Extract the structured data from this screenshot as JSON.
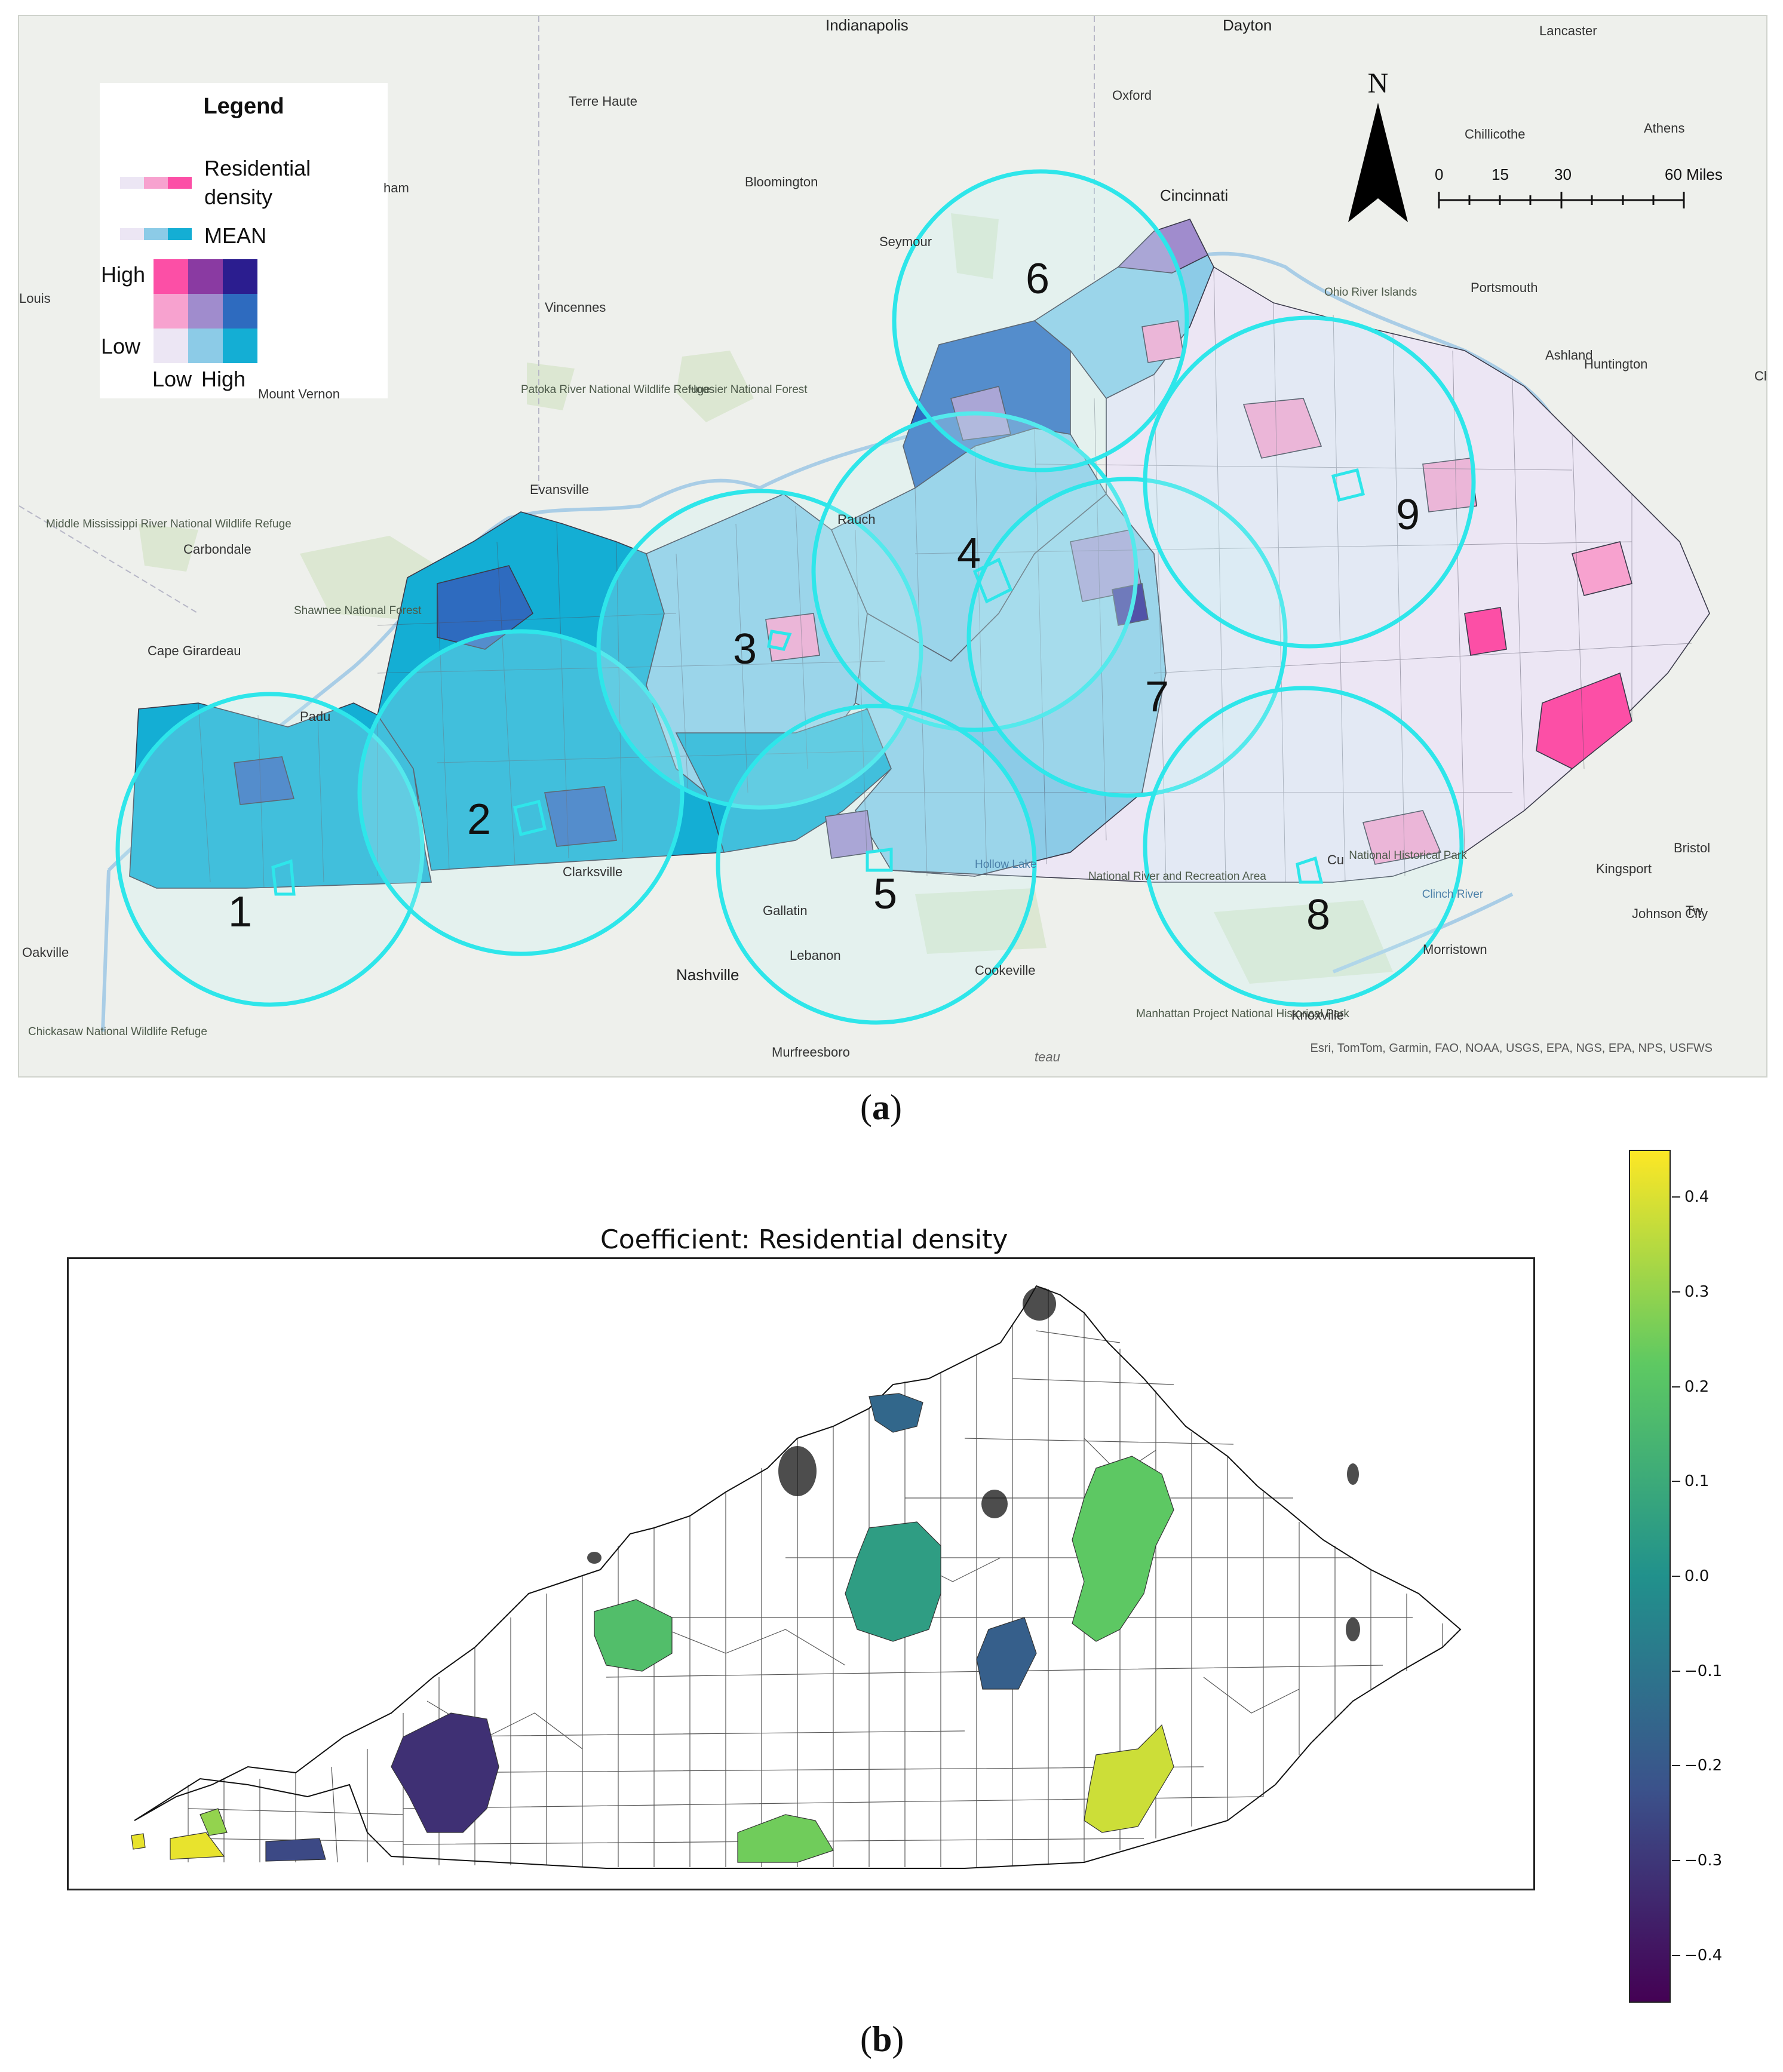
{
  "panel_a": {
    "caption_letter": "a",
    "legend": {
      "title": "Legend",
      "row1_label_line1": "Residential",
      "row1_label_line2": "density",
      "row2_label": "MEAN",
      "axis_high": "High",
      "axis_low": "Low",
      "x_low": "Low",
      "x_high": "High",
      "bivariate_colors": [
        [
          "#fc4fa6",
          "#8a3aa2",
          "#2b1d8f"
        ],
        [
          "#f7a2cf",
          "#a08ccd",
          "#2e6bbf"
        ],
        [
          "#ece6f4",
          "#8ccbe7",
          "#14aed4"
        ]
      ],
      "residential_ramp": [
        "#ece6f4",
        "#f7a2cf",
        "#fc4fa6"
      ],
      "mean_ramp": [
        "#ece6f4",
        "#8ccbe7",
        "#14aed4"
      ]
    },
    "north_label": "N",
    "scale": {
      "labels": [
        "0",
        "15",
        "30",
        "60 Miles"
      ]
    },
    "cities": {
      "indianapolis": "Indianapolis",
      "dayton": "Dayton",
      "lancaster": "Lancaster",
      "terre_haute": "Terre Haute",
      "oxford": "Oxford",
      "chillicothe": "Chillicothe",
      "athens": "Athens",
      "bloomington": "Bloomington",
      "cincinnati": "Cincinnati",
      "ham": "ham",
      "louis": "Louis",
      "seymour": "Seymour",
      "portsmouth": "Portsmouth",
      "vincennes": "Vincennes",
      "ohio_river_islands": "Ohio River Islands",
      "ashland": "Ashland",
      "huntington": "Huntington",
      "ch": "Ch",
      "mount_vernon": "Mount Vernon",
      "patoka": "Patoka River National Wildlife Refuge",
      "hoosier": "Hoosier National Forest",
      "evansville": "Evansville",
      "middle_mississippi": "Middle Mississippi River National Wildlife Refuge",
      "carbondale": "Carbondale",
      "shawnee": "Shawnee National Forest",
      "cape_girardeau": "Cape Girardeau",
      "padu": "Padu",
      "clarksville": "Clarksville",
      "hollow_lake": "Hollow Lake",
      "gallatin": "Gallatin",
      "national_river": "National River and Recreation Area",
      "kingsport": "Kingsport",
      "bristol": "Bristol",
      "johnson_city": "Johnson City",
      "morristown": "Morristown",
      "oakville": "Oakville",
      "lebanon": "Lebanon",
      "cookeville": "Cookeville",
      "nashville": "Nashville",
      "manhattan": "Manhattan Project National Historical Park",
      "knoxville": "Knoxville",
      "murfreesboro": "Murfreesboro",
      "chickasaw": "Chickasaw National Wildlife Refuge",
      "clinch_river": "Clinch River",
      "rauch": "Rauch",
      "cu": "Cu",
      "national_hist": "National Historical Park",
      "ateau": "teau",
      "tw": "Tw"
    },
    "zones": [
      "1",
      "2",
      "3",
      "4",
      "5",
      "6",
      "7",
      "8",
      "9"
    ],
    "attribution": "Esri, TomTom, Garmin, FAO, NOAA, USGS, EPA, NGS, EPA, NPS, USFWS"
  },
  "panel_b": {
    "caption_letter": "b",
    "title": "Coefficient: Residential density",
    "colorbar_ticks": [
      "0.4",
      "0.3",
      "0.2",
      "0.1",
      "0.0",
      "−0.1",
      "−0.2",
      "−0.3",
      "−0.4"
    ],
    "colorbar_range": [
      -0.45,
      0.45
    ],
    "colormap": "viridis",
    "highlighted_regions": [
      {
        "id": "northern-ky",
        "coefficient": -0.15
      },
      {
        "id": "louisville-south",
        "coefficient": 0.05
      },
      {
        "id": "central-east",
        "coefficient": 0.22
      },
      {
        "id": "lexington-south",
        "coefficient": -0.18
      },
      {
        "id": "west-central",
        "coefficient": 0.18
      },
      {
        "id": "pennyrile",
        "coefficient": -0.32
      },
      {
        "id": "south-central",
        "coefficient": 0.25
      },
      {
        "id": "southeast",
        "coefficient": 0.38
      },
      {
        "id": "far-west",
        "coefficient": 0.42
      },
      {
        "id": "far-west-2",
        "coefficient": 0.3
      },
      {
        "id": "jackson-purchase",
        "coefficient": -0.25
      }
    ]
  }
}
